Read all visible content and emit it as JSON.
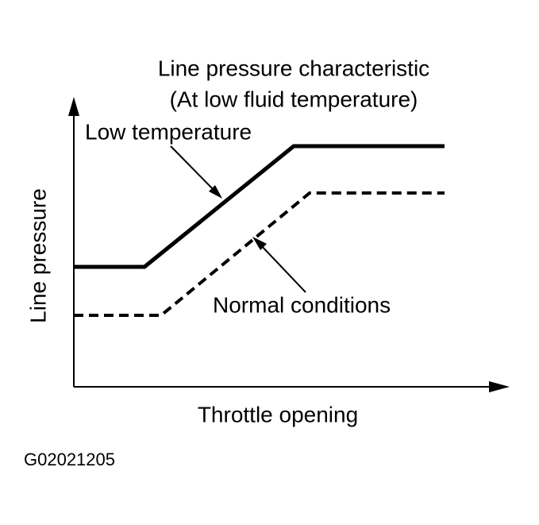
{
  "title": {
    "lines": [
      "Line pressure characteristic",
      "(At low fluid temperature)"
    ]
  },
  "curves": {
    "low": {
      "label": "Low temperature"
    },
    "normal": {
      "label": "Normal conditions"
    }
  },
  "axes": {
    "y_label": "Line pressure",
    "x_label": "Throttle opening"
  },
  "figure_id": "G02021205"
}
